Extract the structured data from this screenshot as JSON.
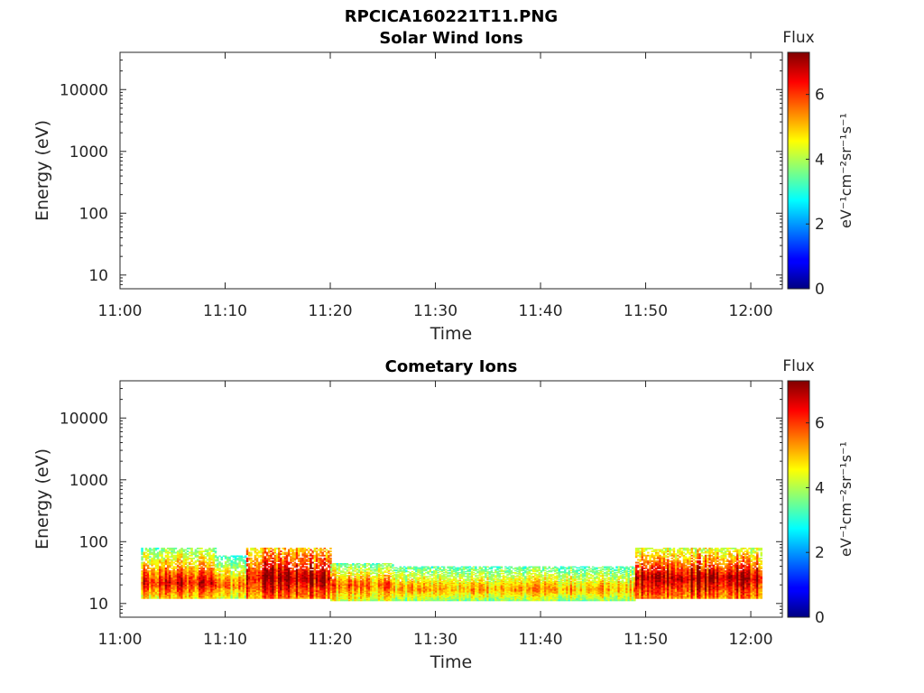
{
  "figure": {
    "title": "RPCICA160221T11.PNG"
  },
  "colors": {
    "axis": "#262626",
    "background": "#ffffff"
  },
  "chart_data": [
    {
      "type": "heatmap",
      "title": "Solar Wind Ions",
      "xlabel": "Time",
      "ylabel": "Energy (eV)",
      "x_ticks": [
        "11:00",
        "11:10",
        "11:20",
        "11:30",
        "11:40",
        "11:50",
        "12:00"
      ],
      "y_ticks": [
        "10",
        "100",
        "1000",
        "10000"
      ],
      "y_scale": "log",
      "ylim": [
        6,
        40000
      ],
      "xlim": [
        "11:00",
        "12:03"
      ],
      "colorbar": {
        "title": "Flux",
        "label": "eV⁻¹cm⁻²sr⁻¹s⁻¹",
        "ticks": [
          "0",
          "2",
          "4",
          "6"
        ],
        "range": [
          0,
          7.3
        ]
      },
      "segments": []
    },
    {
      "type": "heatmap",
      "title": "Cometary Ions",
      "xlabel": "Time",
      "ylabel": "Energy (eV)",
      "x_ticks": [
        "11:00",
        "11:10",
        "11:20",
        "11:30",
        "11:40",
        "11:50",
        "12:00"
      ],
      "y_ticks": [
        "10",
        "100",
        "1000",
        "10000"
      ],
      "y_scale": "log",
      "ylim": [
        6,
        40000
      ],
      "xlim": [
        "11:00",
        "12:03"
      ],
      "colorbar": {
        "title": "Flux",
        "label": "eV⁻¹cm⁻²sr⁻¹s⁻¹",
        "ticks": [
          "0",
          "2",
          "4",
          "6"
        ],
        "range": [
          0,
          7.3
        ]
      },
      "segments": [
        {
          "t_start": "11:02",
          "t_end": "11:09",
          "e_low": 12,
          "e_high": 80,
          "peak_energy": 22,
          "peak_flux": 6.3,
          "upper_flux": 3.6
        },
        {
          "t_start": "11:09",
          "t_end": "11:12",
          "e_low": 12,
          "e_high": 60,
          "peak_energy": 20,
          "peak_flux": 5.6,
          "upper_flux": 3.0
        },
        {
          "t_start": "11:12",
          "t_end": "11:20",
          "e_low": 12,
          "e_high": 80,
          "peak_energy": 26,
          "peak_flux": 7.0,
          "upper_flux": 5.0
        },
        {
          "t_start": "11:20",
          "t_end": "11:26",
          "e_low": 11,
          "e_high": 45,
          "peak_energy": 20,
          "peak_flux": 5.7,
          "upper_flux": 3.5
        },
        {
          "t_start": "11:26",
          "t_end": "11:49",
          "e_low": 11,
          "e_high": 40,
          "peak_energy": 17,
          "peak_flux": 5.2,
          "upper_flux": 3.3
        },
        {
          "t_start": "11:49",
          "t_end": "12:01",
          "e_low": 12,
          "e_high": 80,
          "peak_energy": 26,
          "peak_flux": 7.0,
          "upper_flux": 4.3
        }
      ]
    }
  ]
}
